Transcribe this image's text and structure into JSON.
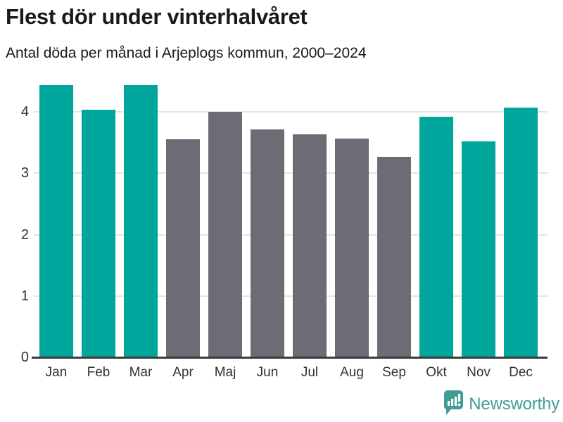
{
  "title": "Flest dör under vinterhalvåret",
  "subtitle": "Antal döda per månad i Arjeplogs kommun, 2000–2024",
  "branding": {
    "logo_text": "Newsworthy",
    "logo_icon": "bar-chart-speech-bubble-icon",
    "logo_color": "#3f9d95"
  },
  "colors": {
    "highlight": "#00a59b",
    "muted": "#6e6b74",
    "gridline": "#e4e4e4",
    "axis_line": "#3b3b3b",
    "text": "#1a1a1a",
    "axis_text": "#333333"
  },
  "chart_data": {
    "type": "bar",
    "title": "Flest dör under vinterhalvåret",
    "subtitle": "Antal döda per månad i Arjeplogs kommun, 2000–2024",
    "categories": [
      "Jan",
      "Feb",
      "Mar",
      "Apr",
      "Maj",
      "Jun",
      "Jul",
      "Aug",
      "Sep",
      "Okt",
      "Nov",
      "Dec"
    ],
    "values": [
      4.44,
      4.04,
      4.44,
      3.56,
      4.0,
      3.72,
      3.64,
      3.57,
      3.27,
      3.92,
      3.52,
      4.07
    ],
    "color_keys": [
      "highlight",
      "highlight",
      "highlight",
      "muted",
      "muted",
      "muted",
      "muted",
      "muted",
      "muted",
      "highlight",
      "highlight",
      "highlight"
    ],
    "y_ticks": [
      0,
      1,
      2,
      3,
      4
    ],
    "ylim": [
      0,
      4.46
    ],
    "xlabel": "",
    "ylabel": "",
    "grid": true,
    "legend": false
  }
}
